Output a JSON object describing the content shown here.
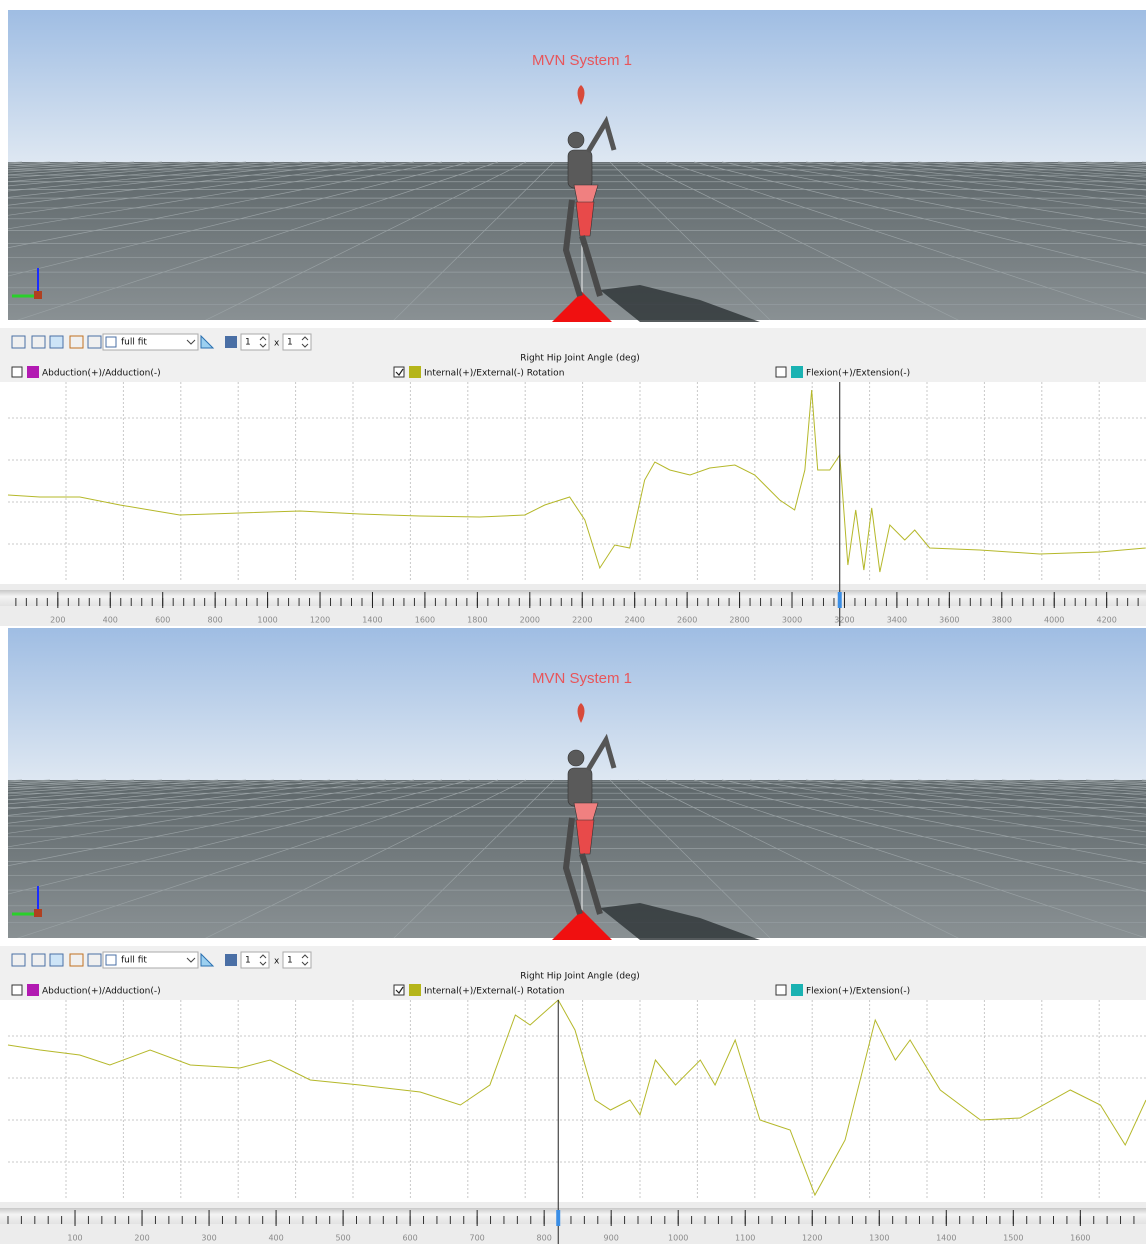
{
  "panels": [
    {
      "viewport_title": "MVN System 1",
      "toolbar": {
        "fit": "full fit",
        "rows": "1",
        "times": "x",
        "cols": "1"
      },
      "chart": {
        "type": "line",
        "title": "Right Hip Joint Angle (deg)",
        "legend": [
          {
            "label": "Abduction(+)/Adduction(-)",
            "color": "#b21ab2",
            "checked": false
          },
          {
            "label": "Internal(+)/External(-) Rotation",
            "color": "#b5b51a",
            "checked": true
          },
          {
            "label": "Flexion(+)/Extension(-)",
            "color": "#1ab2b2",
            "checked": false
          }
        ],
        "color": "#b5b82a",
        "grid": true,
        "x": [
          10,
          131,
          284,
          437,
          665,
          894,
          1123,
          1352,
          1580,
          1809,
          1981,
          2057,
          2152,
          2210,
          2267,
          2324,
          2381,
          2438,
          2477,
          2534,
          2611,
          2686,
          2782,
          2858,
          2953,
          3010,
          3049,
          3075,
          3098,
          3144,
          3182,
          3213,
          3243,
          3274,
          3304,
          3335,
          3373,
          3430,
          3468,
          3525,
          3716,
          3945,
          4174,
          4349
        ],
        "values": [
          43.5,
          42.5,
          42.5,
          38.5,
          33.5,
          34.5,
          35.5,
          34,
          33,
          32.5,
          33.5,
          38.5,
          42.5,
          31,
          7,
          18.5,
          17,
          51,
          60,
          56,
          53.5,
          57,
          58.5,
          53.5,
          41,
          36,
          56,
          96,
          56,
          56,
          63.5,
          8.5,
          36,
          6,
          37,
          5,
          28.5,
          21,
          26,
          17,
          16,
          14,
          15,
          17
        ],
        "ylim": [
          0,
          100
        ],
        "xlim": [
          10,
          4350
        ],
        "xticks": [
          200,
          400,
          600,
          800,
          1000,
          1200,
          1400,
          1600,
          1800,
          2000,
          2200,
          2400,
          2600,
          2800,
          3000,
          3200,
          3400,
          3600,
          3800,
          4000,
          4200
        ],
        "cursor": 3182
      }
    },
    {
      "viewport_title": "MVN System 1",
      "toolbar": {
        "fit": "full fit",
        "rows": "1",
        "times": "x",
        "cols": "1"
      },
      "chart": {
        "type": "line",
        "title": "Right Hip Joint Angle (deg)",
        "legend": [
          {
            "label": "Abduction(+)/Adduction(-)",
            "color": "#b21ab2",
            "checked": false
          },
          {
            "label": "Internal(+)/External(-) Rotation",
            "color": "#b5b51a",
            "checked": true
          },
          {
            "label": "Flexion(+)/Extension(-)",
            "color": "#1ab2b2",
            "checked": false
          }
        ],
        "color": "#b5b82a",
        "grid": true,
        "x": [
          0,
          48,
          107,
          152,
          212,
          272,
          346,
          391,
          451,
          525,
          615,
          675,
          719,
          757,
          779,
          821,
          846,
          876,
          899,
          928,
          943,
          966,
          996,
          1033,
          1055,
          1085,
          1122,
          1167,
          1204,
          1249,
          1294,
          1324,
          1346,
          1391,
          1451,
          1510,
          1585,
          1630,
          1667,
          1698
        ],
        "values": [
          77.5,
          75,
          72.5,
          67.5,
          75,
          67.5,
          66,
          70,
          60,
          57.5,
          54,
          47.5,
          57.5,
          92.5,
          87.5,
          100,
          85,
          50,
          45,
          50,
          42.5,
          70,
          57.5,
          70,
          57.5,
          80,
          40,
          35,
          2.5,
          30,
          90,
          70,
          80,
          55,
          40,
          41,
          55,
          47.5,
          27.5,
          50
        ],
        "ylim": [
          0,
          100
        ],
        "xlim": [
          0,
          1698
        ],
        "xticks": [
          100,
          200,
          300,
          400,
          500,
          600,
          700,
          800,
          900,
          1000,
          1100,
          1200,
          1300,
          1400,
          1500,
          1600
        ],
        "cursor": 821
      }
    }
  ]
}
